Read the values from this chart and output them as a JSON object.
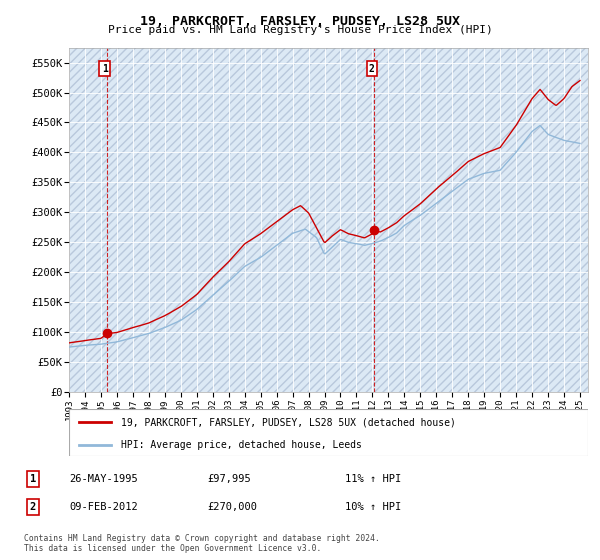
{
  "title": "19, PARKCROFT, FARSLEY, PUDSEY, LS28 5UX",
  "subtitle": "Price paid vs. HM Land Registry's House Price Index (HPI)",
  "legend_line1": "19, PARKCROFT, FARSLEY, PUDSEY, LS28 5UX (detached house)",
  "legend_line2": "HPI: Average price, detached house, Leeds",
  "sale1_label": "1",
  "sale1_date": "26-MAY-1995",
  "sale1_price": "£97,995",
  "sale1_hpi": "11% ↑ HPI",
  "sale1_x": 1995.39,
  "sale1_y": 97995,
  "sale2_label": "2",
  "sale2_date": "09-FEB-2012",
  "sale2_price": "£270,000",
  "sale2_hpi": "10% ↑ HPI",
  "sale2_x": 2012.12,
  "sale2_y": 270000,
  "ylim": [
    0,
    575000
  ],
  "xlim_start": 1993,
  "xlim_end": 2025.5,
  "yticks": [
    0,
    50000,
    100000,
    150000,
    200000,
    250000,
    300000,
    350000,
    400000,
    450000,
    500000,
    550000
  ],
  "ytick_labels": [
    "£0",
    "£50K",
    "£100K",
    "£150K",
    "£200K",
    "£250K",
    "£300K",
    "£350K",
    "£400K",
    "£450K",
    "£500K",
    "£550K"
  ],
  "xticks": [
    1993,
    1994,
    1995,
    1996,
    1997,
    1998,
    1999,
    2000,
    2001,
    2002,
    2003,
    2004,
    2005,
    2006,
    2007,
    2008,
    2009,
    2010,
    2011,
    2012,
    2013,
    2014,
    2015,
    2016,
    2017,
    2018,
    2019,
    2020,
    2021,
    2022,
    2023,
    2024,
    2025
  ],
  "hpi_color": "#91b8d9",
  "price_color": "#cc0000",
  "vline_color": "#cc0000",
  "background_color": "#dce9f5",
  "footer": "Contains HM Land Registry data © Crown copyright and database right 2024.\nThis data is licensed under the Open Government Licence v3.0.",
  "hpi_keypoints": [
    [
      1993.0,
      75000
    ],
    [
      1994.0,
      78000
    ],
    [
      1995.0,
      80000
    ],
    [
      1996.0,
      84000
    ],
    [
      1997.0,
      91000
    ],
    [
      1998.0,
      98000
    ],
    [
      1999.0,
      108000
    ],
    [
      2000.0,
      120000
    ],
    [
      2001.0,
      138000
    ],
    [
      2002.0,
      162000
    ],
    [
      2003.0,
      185000
    ],
    [
      2004.0,
      210000
    ],
    [
      2005.0,
      225000
    ],
    [
      2006.0,
      245000
    ],
    [
      2007.0,
      265000
    ],
    [
      2007.8,
      272000
    ],
    [
      2008.5,
      258000
    ],
    [
      2009.0,
      230000
    ],
    [
      2009.5,
      242000
    ],
    [
      2010.0,
      255000
    ],
    [
      2010.5,
      250000
    ],
    [
      2011.0,
      248000
    ],
    [
      2011.5,
      245000
    ],
    [
      2012.0,
      248000
    ],
    [
      2012.5,
      252000
    ],
    [
      2013.0,
      258000
    ],
    [
      2013.5,
      265000
    ],
    [
      2014.0,
      278000
    ],
    [
      2015.0,
      295000
    ],
    [
      2016.0,
      315000
    ],
    [
      2017.0,
      335000
    ],
    [
      2018.0,
      355000
    ],
    [
      2019.0,
      365000
    ],
    [
      2020.0,
      370000
    ],
    [
      2021.0,
      400000
    ],
    [
      2022.0,
      435000
    ],
    [
      2022.5,
      445000
    ],
    [
      2023.0,
      430000
    ],
    [
      2024.0,
      420000
    ],
    [
      2025.0,
      415000
    ]
  ],
  "price_keypoints": [
    [
      1993.0,
      82000
    ],
    [
      1994.0,
      86000
    ],
    [
      1995.0,
      90000
    ],
    [
      1995.4,
      97995
    ],
    [
      1996.0,
      100000
    ],
    [
      1997.0,
      108000
    ],
    [
      1998.0,
      116000
    ],
    [
      1999.0,
      128000
    ],
    [
      2000.0,
      143000
    ],
    [
      2001.0,
      163000
    ],
    [
      2002.0,
      192000
    ],
    [
      2003.0,
      218000
    ],
    [
      2004.0,
      248000
    ],
    [
      2005.0,
      265000
    ],
    [
      2006.0,
      285000
    ],
    [
      2007.0,
      305000
    ],
    [
      2007.5,
      312000
    ],
    [
      2008.0,
      300000
    ],
    [
      2008.5,
      275000
    ],
    [
      2009.0,
      250000
    ],
    [
      2009.5,
      262000
    ],
    [
      2010.0,
      272000
    ],
    [
      2010.5,
      265000
    ],
    [
      2011.0,
      262000
    ],
    [
      2011.5,
      258000
    ],
    [
      2012.0,
      265000
    ],
    [
      2012.12,
      270000
    ],
    [
      2012.5,
      268000
    ],
    [
      2013.0,
      275000
    ],
    [
      2013.5,
      283000
    ],
    [
      2014.0,
      295000
    ],
    [
      2015.0,
      315000
    ],
    [
      2016.0,
      340000
    ],
    [
      2017.0,
      362000
    ],
    [
      2018.0,
      385000
    ],
    [
      2019.0,
      398000
    ],
    [
      2020.0,
      408000
    ],
    [
      2021.0,
      445000
    ],
    [
      2022.0,
      490000
    ],
    [
      2022.5,
      505000
    ],
    [
      2023.0,
      488000
    ],
    [
      2023.5,
      478000
    ],
    [
      2024.0,
      490000
    ],
    [
      2024.5,
      510000
    ],
    [
      2025.0,
      520000
    ]
  ]
}
